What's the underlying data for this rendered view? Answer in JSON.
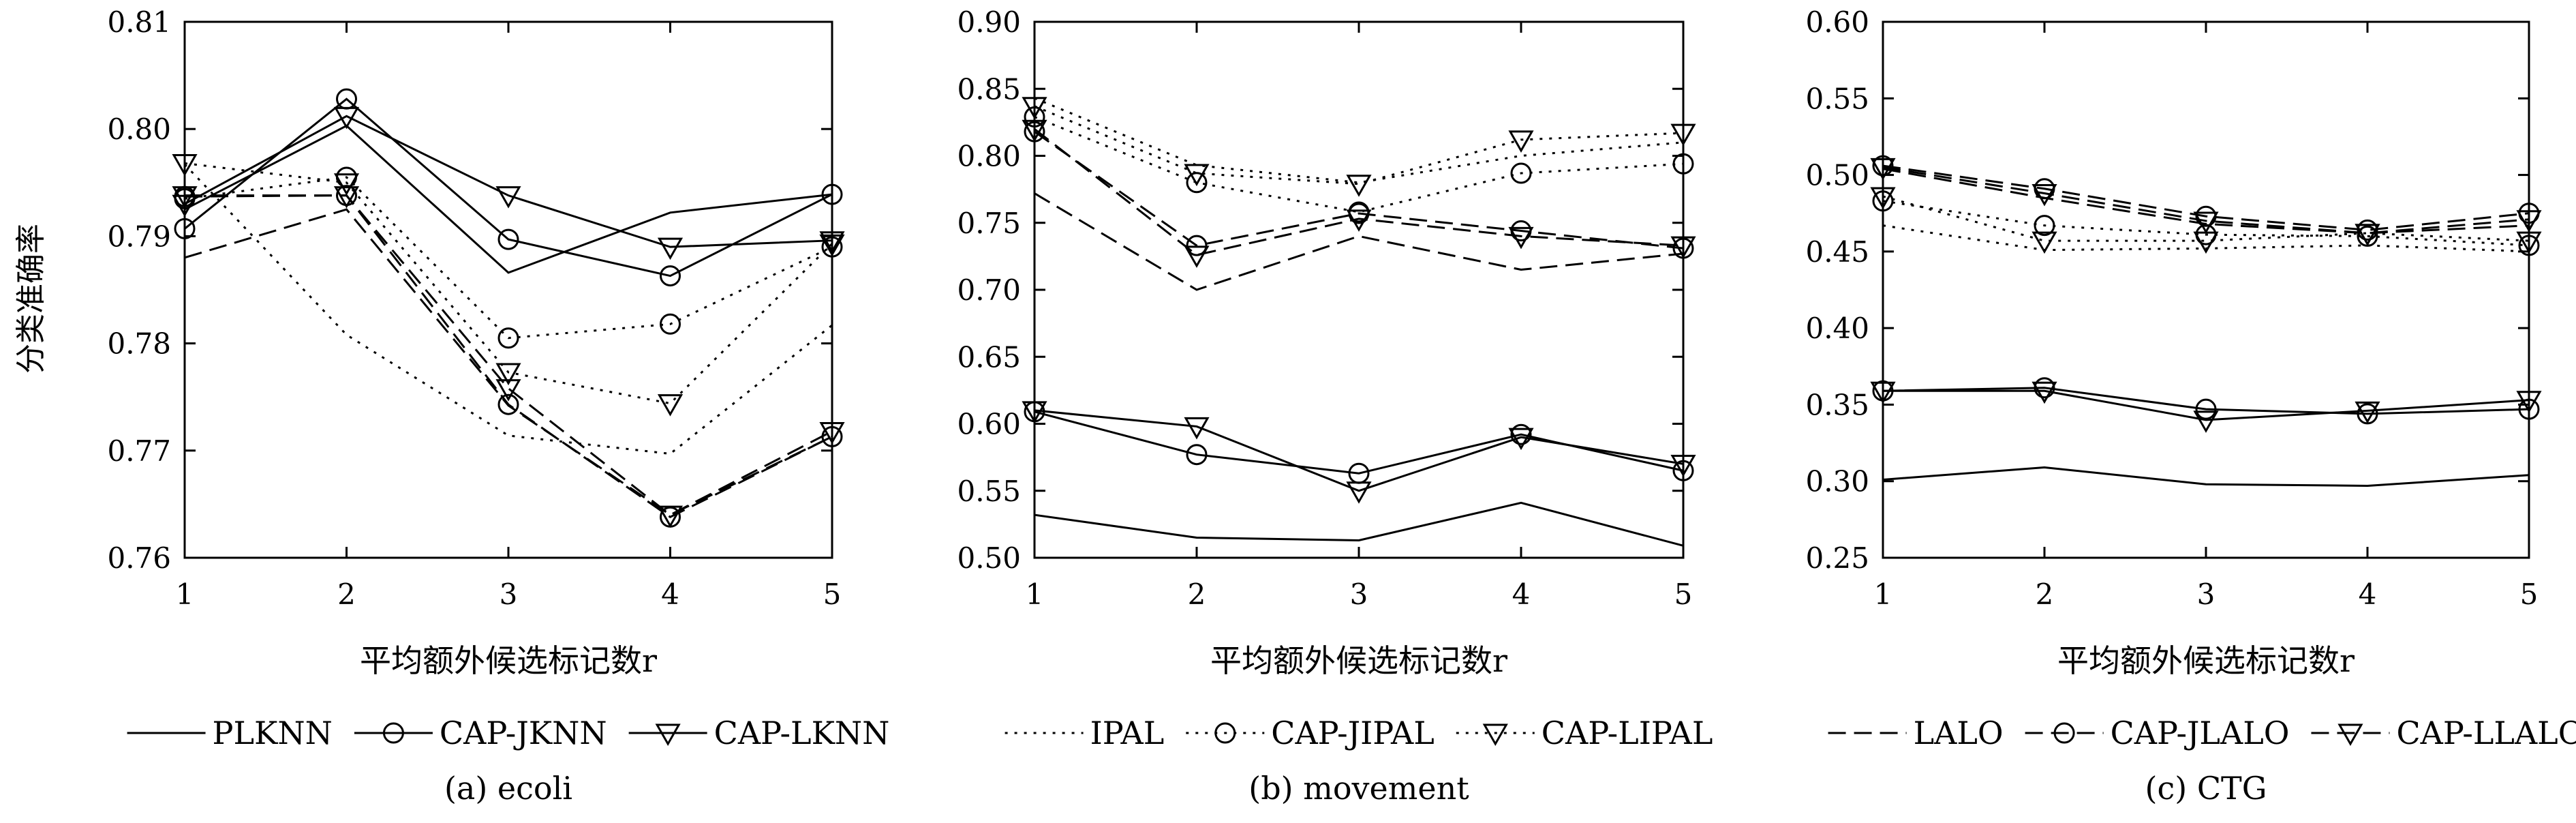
{
  "y_axis_label": "分类准确率",
  "chart_data": [
    {
      "type": "line",
      "caption": "(a) ecoli",
      "xlabel": "平均额外候选标记数r",
      "x": [
        1,
        2,
        3,
        4,
        5
      ],
      "xticks": [
        "1",
        "2",
        "3",
        "4",
        "5"
      ],
      "ylim": [
        0.76,
        0.81
      ],
      "yticks": [
        "0.76",
        "0.77",
        "0.78",
        "0.79",
        "0.80",
        "0.81"
      ],
      "grid": false,
      "legend_position": "bottom",
      "legend": [
        "PLKNN",
        "CAP-JKNN",
        "CAP-LKNN"
      ],
      "series": [
        {
          "name": "PLKNN",
          "style": "solid",
          "marker": "none",
          "values": [
            0.7925,
            0.8003,
            0.7866,
            0.7922,
            0.7939
          ]
        },
        {
          "name": "CAP-JKNN",
          "style": "solid",
          "marker": "circle",
          "values": [
            0.7907,
            0.8028,
            0.7897,
            0.7863,
            0.7939
          ]
        },
        {
          "name": "CAP-LKNN",
          "style": "solid",
          "marker": "triangle",
          "values": [
            0.793,
            0.8012,
            0.7938,
            0.789,
            0.7896
          ]
        },
        {
          "style": "dotted",
          "marker": "none",
          "values": [
            0.7967,
            0.7808,
            0.7714,
            0.7697,
            0.7817
          ]
        },
        {
          "style": "dotted",
          "marker": "circle",
          "values": [
            0.7935,
            0.7955,
            0.7805,
            0.7818,
            0.789
          ]
        },
        {
          "style": "dotted",
          "marker": "triangle",
          "values": [
            0.7968,
            0.795,
            0.7773,
            0.7744,
            0.7893
          ]
        },
        {
          "style": "dashed",
          "marker": "none",
          "values": [
            0.788,
            0.7925,
            0.7742,
            0.764,
            0.7713
          ]
        },
        {
          "style": "dashed",
          "marker": "circle",
          "values": [
            0.7937,
            0.7938,
            0.7743,
            0.7638,
            0.7713
          ]
        },
        {
          "style": "dashed",
          "marker": "triangle",
          "values": [
            0.7938,
            0.7938,
            0.7758,
            0.764,
            0.7718
          ]
        }
      ]
    },
    {
      "type": "line",
      "caption": "(b) movement",
      "xlabel": "平均额外候选标记数r",
      "x": [
        1,
        2,
        3,
        4,
        5
      ],
      "xticks": [
        "1",
        "2",
        "3",
        "4",
        "5"
      ],
      "ylim": [
        0.5,
        0.9
      ],
      "yticks": [
        "0.50",
        "0.55",
        "0.60",
        "0.65",
        "0.70",
        "0.75",
        "0.80",
        "0.85",
        "0.90"
      ],
      "grid": false,
      "legend_position": "bottom",
      "legend": [
        "IPAL",
        "CAP-JIPAL",
        "CAP-LIPAL"
      ],
      "series": [
        {
          "style": "solid",
          "marker": "none",
          "values": [
            0.532,
            0.515,
            0.513,
            0.541,
            0.509
          ]
        },
        {
          "style": "solid",
          "marker": "circle",
          "values": [
            0.609,
            0.577,
            0.563,
            0.592,
            0.565
          ]
        },
        {
          "style": "solid",
          "marker": "triangle",
          "values": [
            0.61,
            0.598,
            0.55,
            0.59,
            0.57
          ]
        },
        {
          "name": "IPAL",
          "style": "dotted",
          "marker": "none",
          "values": [
            0.843,
            0.793,
            0.78,
            0.8,
            0.81
          ]
        },
        {
          "name": "CAP-JIPAL",
          "style": "dotted",
          "marker": "circle",
          "values": [
            0.829,
            0.78,
            0.758,
            0.787,
            0.794
          ]
        },
        {
          "name": "CAP-LIPAL",
          "style": "dotted",
          "marker": "triangle",
          "values": [
            0.837,
            0.787,
            0.779,
            0.812,
            0.817
          ]
        },
        {
          "style": "dashed",
          "marker": "none",
          "values": [
            0.772,
            0.7,
            0.74,
            0.715,
            0.727
          ]
        },
        {
          "style": "dashed",
          "marker": "circle",
          "values": [
            0.818,
            0.733,
            0.757,
            0.744,
            0.731
          ]
        },
        {
          "style": "dashed",
          "marker": "triangle",
          "values": [
            0.82,
            0.726,
            0.753,
            0.74,
            0.733
          ]
        }
      ]
    },
    {
      "type": "line",
      "caption": "(c) CTG",
      "xlabel": "平均额外候选标记数r",
      "x": [
        1,
        2,
        3,
        4,
        5
      ],
      "xticks": [
        "1",
        "2",
        "3",
        "4",
        "5"
      ],
      "ylim": [
        0.25,
        0.6
      ],
      "yticks": [
        "0.25",
        "0.30",
        "0.35",
        "0.40",
        "0.45",
        "0.50",
        "0.55",
        "0.60"
      ],
      "grid": false,
      "legend_position": "bottom",
      "legend": [
        "LALO",
        "CAP-JLALO",
        "CAP-LLALO"
      ],
      "series": [
        {
          "style": "solid",
          "marker": "none",
          "values": [
            0.301,
            0.309,
            0.298,
            0.297,
            0.304
          ]
        },
        {
          "style": "solid",
          "marker": "circle",
          "values": [
            0.359,
            0.361,
            0.347,
            0.344,
            0.347
          ]
        },
        {
          "style": "solid",
          "marker": "triangle",
          "values": [
            0.359,
            0.359,
            0.34,
            0.346,
            0.353
          ]
        },
        {
          "style": "dotted",
          "marker": "none",
          "values": [
            0.467,
            0.451,
            0.452,
            0.454,
            0.45
          ]
        },
        {
          "style": "dotted",
          "marker": "circle",
          "values": [
            0.483,
            0.467,
            0.461,
            0.46,
            0.454
          ]
        },
        {
          "style": "dotted",
          "marker": "triangle",
          "values": [
            0.486,
            0.457,
            0.457,
            0.462,
            0.457
          ]
        },
        {
          "name": "LALO",
          "style": "dashed",
          "marker": "none",
          "values": [
            0.504,
            0.485,
            0.468,
            0.462,
            0.467
          ]
        },
        {
          "name": "CAP-JLALO",
          "style": "dashed",
          "marker": "circle",
          "values": [
            0.506,
            0.491,
            0.473,
            0.464,
            0.475
          ]
        },
        {
          "name": "CAP-LLALO",
          "style": "dashed",
          "marker": "triangle",
          "values": [
            0.505,
            0.488,
            0.47,
            0.462,
            0.471
          ]
        }
      ]
    }
  ]
}
